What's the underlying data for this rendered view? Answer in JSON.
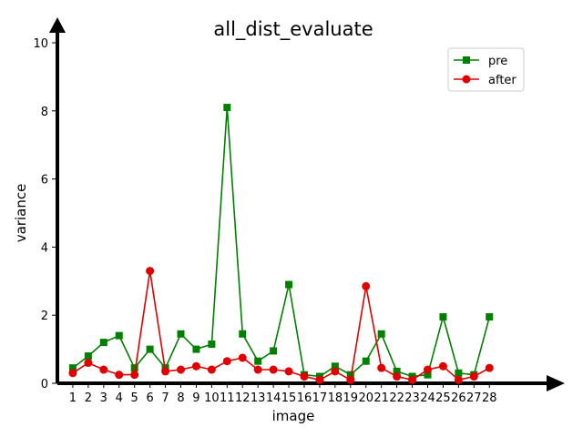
{
  "chart_data": {
    "type": "line",
    "title": "all_dist_evaluate",
    "xlabel": "image",
    "ylabel": "variance",
    "x": [
      1,
      2,
      3,
      4,
      5,
      6,
      7,
      8,
      9,
      10,
      11,
      12,
      13,
      14,
      15,
      16,
      17,
      18,
      19,
      20,
      21,
      22,
      23,
      24,
      25,
      26,
      27,
      28
    ],
    "xlim": [
      0,
      32
    ],
    "ylim": [
      0,
      10
    ],
    "yticks": [
      0,
      2,
      4,
      6,
      8,
      10
    ],
    "grid": false,
    "legend_position": "top-right",
    "series": [
      {
        "name": "pre",
        "color": "#008000",
        "marker": "square",
        "values": [
          0.45,
          0.8,
          1.2,
          1.4,
          0.45,
          1.0,
          0.45,
          1.45,
          1.0,
          1.15,
          8.1,
          1.45,
          0.65,
          0.95,
          2.9,
          0.25,
          0.2,
          0.5,
          0.25,
          0.65,
          1.45,
          0.35,
          0.2,
          0.25,
          1.95,
          0.3,
          0.25,
          1.95
        ]
      },
      {
        "name": "after",
        "color": "#e00000",
        "marker": "circle",
        "values": [
          0.3,
          0.6,
          0.4,
          0.25,
          0.25,
          3.3,
          0.35,
          0.4,
          0.5,
          0.4,
          0.65,
          0.75,
          0.4,
          0.4,
          0.35,
          0.2,
          0.1,
          0.35,
          0.1,
          2.85,
          0.45,
          0.2,
          0.1,
          0.4,
          0.5,
          0.1,
          0.2,
          0.45
        ]
      }
    ]
  }
}
